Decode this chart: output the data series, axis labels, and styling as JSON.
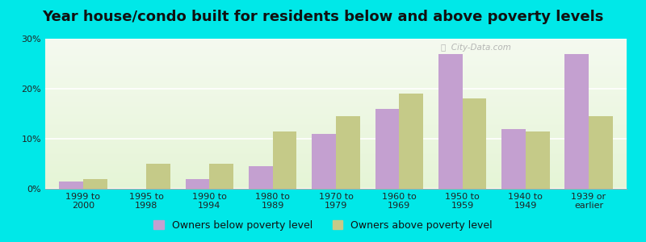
{
  "title": "Year house/condo built for residents below and above poverty levels",
  "categories": [
    "1999 to\n2000",
    "1995 to\n1998",
    "1990 to\n1994",
    "1980 to\n1989",
    "1970 to\n1979",
    "1960 to\n1969",
    "1950 to\n1959",
    "1940 to\n1949",
    "1939 or\nearlier"
  ],
  "below_poverty": [
    1.5,
    0.0,
    2.0,
    4.5,
    11.0,
    16.0,
    27.0,
    12.0,
    27.0
  ],
  "above_poverty": [
    2.0,
    5.0,
    5.0,
    11.5,
    14.5,
    19.0,
    18.0,
    11.5,
    14.5
  ],
  "below_color": "#c4a0d0",
  "above_color": "#c5ca88",
  "background_outer": "#00e8e8",
  "ylim": [
    0,
    30
  ],
  "yticks": [
    0,
    10,
    20,
    30
  ],
  "ytick_labels": [
    "0%",
    "10%",
    "20%",
    "30%"
  ],
  "bar_width": 0.38,
  "title_fontsize": 13,
  "tick_fontsize": 8,
  "legend_fontsize": 9,
  "below_label": "Owners below poverty level",
  "above_label": "Owners above poverty level",
  "watermark": "ⓘ  City-Data.com"
}
